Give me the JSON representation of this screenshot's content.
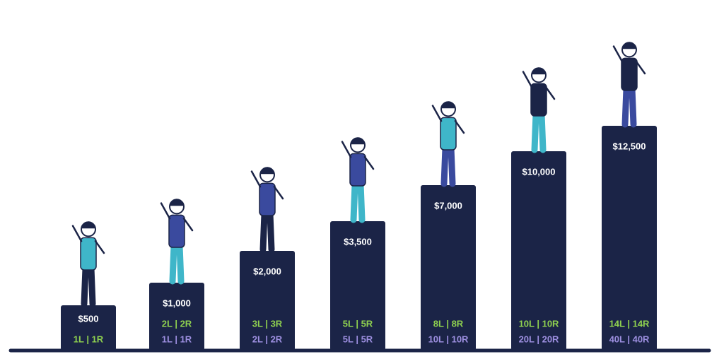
{
  "tiers": [
    {
      "amount": "$500",
      "lines": [
        "1L | 1R"
      ]
    },
    {
      "amount": "$1,000",
      "lines": [
        "2L | 2R",
        "1L | 1R"
      ]
    },
    {
      "amount": "$2,000",
      "lines": [
        "3L | 3R",
        "2L | 2R"
      ]
    },
    {
      "amount": "$3,500",
      "lines": [
        "5L | 5R",
        "5L | 5R"
      ]
    },
    {
      "amount": "$7,000",
      "lines": [
        "8L | 8R",
        "10L | 10R"
      ]
    },
    {
      "amount": "$10,000",
      "lines": [
        "10L | 10R",
        "20L | 20R"
      ]
    },
    {
      "amount": "$12,500",
      "lines": [
        "14L | 14R",
        "40L | 40R"
      ]
    }
  ]
}
